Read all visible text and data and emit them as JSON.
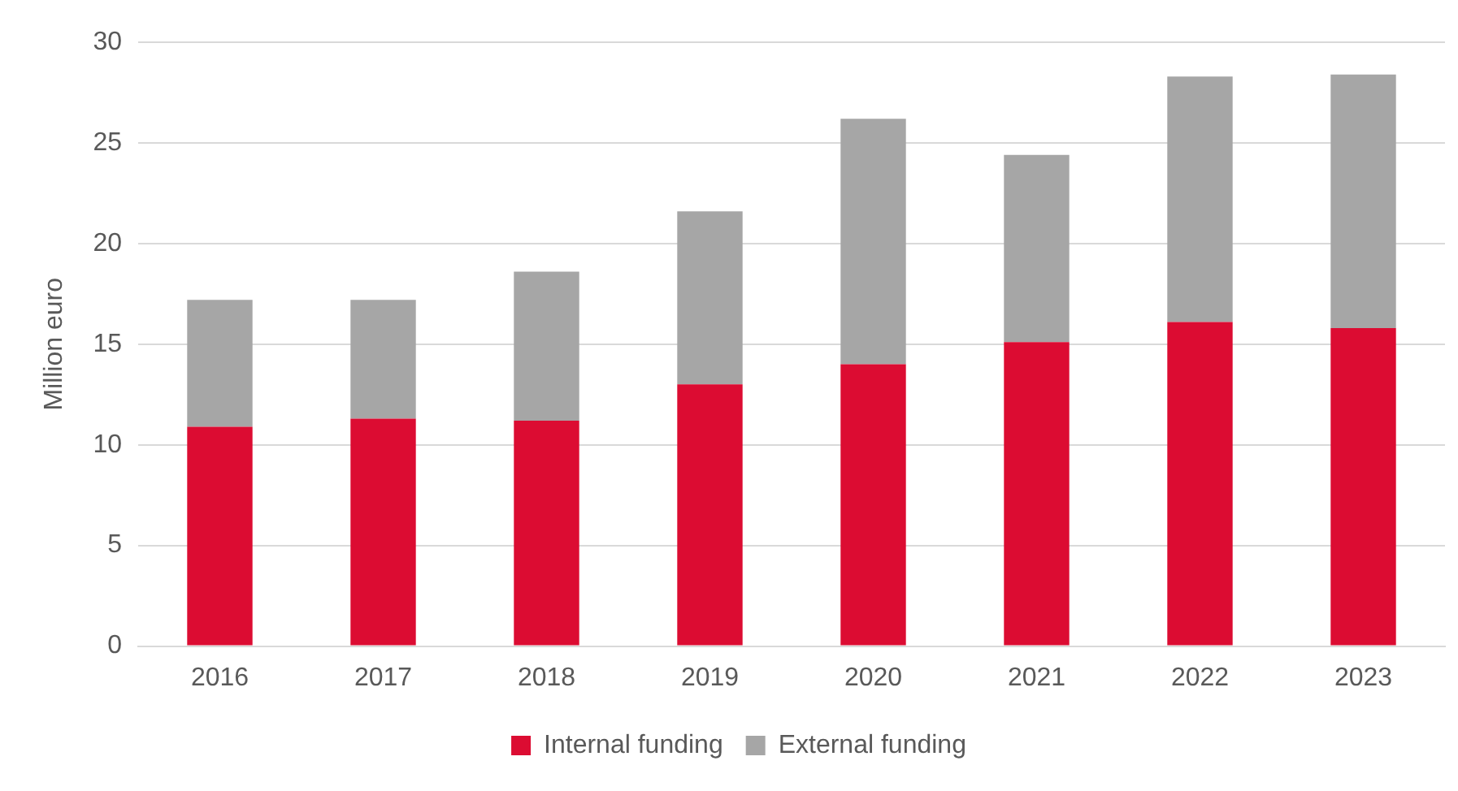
{
  "chart_data": {
    "type": "bar",
    "ylabel": "Million euro",
    "stacked": true,
    "categories": [
      "2016",
      "2017",
      "2018",
      "2019",
      "2020",
      "2021",
      "2022",
      "2023"
    ],
    "series": [
      {
        "name": "Internal funding",
        "color": "#dc0c32",
        "values": [
          10.9,
          11.3,
          11.2,
          13.0,
          14.0,
          15.1,
          16.1,
          15.8
        ]
      },
      {
        "name": "External funding",
        "color": "#a6a6a6",
        "values": [
          6.3,
          5.9,
          7.4,
          8.6,
          12.2,
          9.3,
          12.2,
          12.6
        ]
      }
    ],
    "ylim": [
      0,
      30
    ],
    "yticks": [
      0,
      5,
      10,
      15,
      20,
      25,
      30
    ],
    "grid": "y",
    "legend": "bottom"
  }
}
